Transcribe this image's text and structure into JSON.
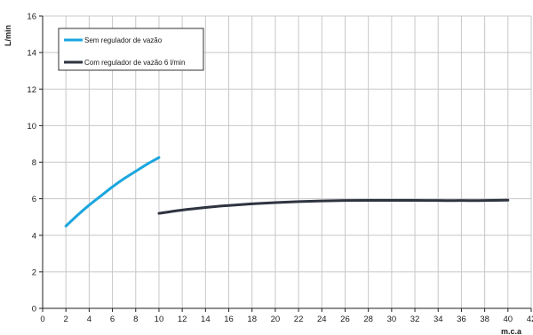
{
  "chart_data": {
    "type": "line",
    "title": "",
    "xlabel": "m.c.a",
    "ylabel": "L/min",
    "xlim": [
      0,
      42
    ],
    "ylim": [
      0,
      16
    ],
    "x_ticks": [
      0,
      2,
      4,
      6,
      8,
      10,
      12,
      14,
      16,
      18,
      20,
      22,
      24,
      26,
      28,
      30,
      32,
      34,
      36,
      38,
      40,
      42
    ],
    "y_ticks": [
      0,
      2,
      4,
      6,
      8,
      10,
      12,
      14,
      16
    ],
    "grid": true,
    "legend_position": "top-left",
    "series": [
      {
        "name": "Sem regulador de vazão",
        "color": "#1ba6df",
        "x": [
          2,
          3,
          4,
          5,
          6,
          7,
          8,
          9,
          10
        ],
        "y": [
          4.5,
          5.1,
          5.65,
          6.15,
          6.65,
          7.1,
          7.5,
          7.9,
          8.25
        ]
      },
      {
        "name": "Com regulador de vazão 6 l/min",
        "color": "#2e3440",
        "x": [
          10,
          12,
          14,
          16,
          18,
          20,
          22,
          24,
          26,
          28,
          30,
          32,
          34,
          36,
          38,
          40
        ],
        "y": [
          5.2,
          5.38,
          5.52,
          5.63,
          5.72,
          5.79,
          5.84,
          5.88,
          5.9,
          5.91,
          5.91,
          5.91,
          5.9,
          5.9,
          5.9,
          5.92
        ]
      }
    ]
  }
}
